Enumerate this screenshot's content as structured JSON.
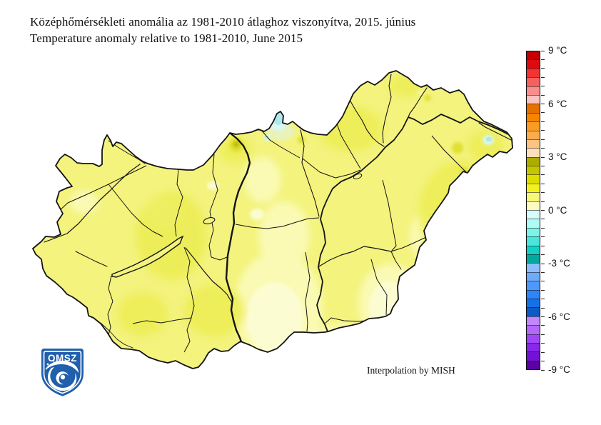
{
  "figure": {
    "title_hu": "Középhőmérsékleti anomália az 1981-2010 átlaghoz viszonyítva, 2015. június",
    "title_en": "Temperature anomaly relative to 1981-2010, June 2015",
    "attribution": "Interpolation by MISH"
  },
  "logo": {
    "text": "OMSZ",
    "shield_color": "#1F5FAC"
  },
  "colorbar": {
    "unit": "°C",
    "value_max": 9,
    "value_min": -9,
    "value_step": 0.5,
    "segment_count": 36,
    "tick_labels": [
      "9 °C",
      "6 °C",
      "3 °C",
      "0 °C",
      "-3 °C",
      "-6 °C",
      "-9 °C"
    ],
    "tick_boundaries": [
      0,
      6,
      12,
      18,
      24,
      30,
      36
    ],
    "colors_top_to_bottom": [
      "#C40000",
      "#DE0A0E",
      "#F23432",
      "#F5615E",
      "#F78F8C",
      "#FAC2C0",
      "#E67000",
      "#F88500",
      "#FA9B22",
      "#FBAD4E",
      "#FCC480",
      "#FDE0BA",
      "#ADAD00",
      "#C6C600",
      "#DEDE00",
      "#F2F220",
      "#F8F878",
      "#FCFCBE",
      "#D8FBFB",
      "#ACFBF4",
      "#7EF4E9",
      "#48E6DB",
      "#12D0C5",
      "#04A89C",
      "#8DBDFB",
      "#6FABFB",
      "#4D99FB",
      "#2D85F9",
      "#1571E7",
      "#0C5AC3",
      "#C287FB",
      "#B269F9",
      "#9F47F7",
      "#8927EB",
      "#7311D7",
      "#5B01A3"
    ]
  },
  "map": {
    "palette": {
      "base": "#F3F37D",
      "light": "#FAFAB4",
      "lighter": "#FCFCD2",
      "mid_dark": "#EDED55",
      "dark": "#E0E030",
      "darkest": "#B9B90E",
      "green_tint": "#E9F2B8",
      "cool_halo": "#DCF6F0",
      "cool": "#AFE9F0",
      "line": "#141414"
    }
  }
}
